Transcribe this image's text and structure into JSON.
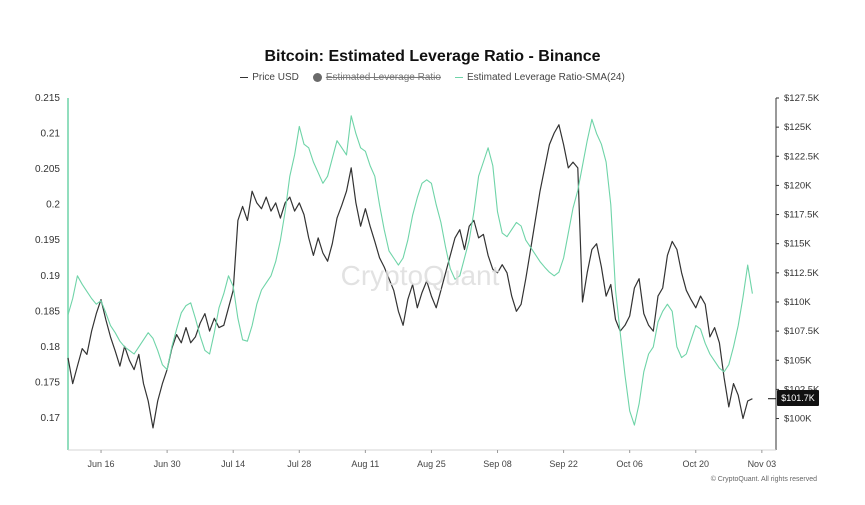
{
  "chart_data": {
    "type": "line",
    "title": "Bitcoin: Estimated Leverage Ratio - Binance",
    "legend": {
      "items": [
        {
          "label": "Price USD",
          "color": "#333333",
          "enabled": true
        },
        {
          "label": "Estimated Leverage Ratio",
          "color": "#6a6a6a",
          "enabled": false
        },
        {
          "label": "Estimated Leverage Ratio-SMA(24)",
          "color": "#6fd4a8",
          "enabled": true
        }
      ]
    },
    "x_ticks": [
      "Jun 16",
      "Jun 30",
      "Jul 14",
      "Jul 28",
      "Aug 11",
      "Aug 25",
      "Sep 08",
      "Sep 22",
      "Oct 06",
      "Oct 20",
      "Nov 03"
    ],
    "x_range": [
      0,
      150
    ],
    "y_left": {
      "ticks": [
        "0.215",
        "0.21",
        "0.205",
        "0.2",
        "0.195",
        "0.19",
        "0.185",
        "0.18",
        "0.175",
        "0.17"
      ],
      "range": [
        0.1655,
        0.215
      ]
    },
    "y_right": {
      "ticks": [
        "$127.5K",
        "$125K",
        "$122.5K",
        "$120K",
        "$117.5K",
        "$115K",
        "$112.5K",
        "$110K",
        "$107.5K",
        "$105K",
        "$102.5K",
        "$100K"
      ],
      "range": [
        97.3,
        127.5
      ]
    },
    "current_price_label": "$101.7K",
    "watermark": "CryptoQuant",
    "footer": "© CryptoQuant. All rights reserved",
    "series": [
      {
        "name": "Price USD",
        "axis": "right",
        "color": "#333333",
        "values": [
          [
            0,
            105.2
          ],
          [
            1,
            103.0
          ],
          [
            2,
            104.5
          ],
          [
            3,
            106.0
          ],
          [
            4,
            105.5
          ],
          [
            5,
            107.5
          ],
          [
            6,
            109.0
          ],
          [
            7,
            110.2
          ],
          [
            8,
            108.5
          ],
          [
            9,
            107.0
          ],
          [
            10,
            105.8
          ],
          [
            11,
            104.5
          ],
          [
            12,
            106.2
          ],
          [
            13,
            105.0
          ],
          [
            14,
            104.2
          ],
          [
            15,
            105.5
          ],
          [
            16,
            103.0
          ],
          [
            17,
            101.5
          ],
          [
            18,
            99.2
          ],
          [
            19,
            101.5
          ],
          [
            20,
            103.0
          ],
          [
            21,
            104.2
          ],
          [
            22,
            106.0
          ],
          [
            23,
            107.2
          ],
          [
            24,
            106.5
          ],
          [
            25,
            107.8
          ],
          [
            26,
            106.5
          ],
          [
            27,
            107.0
          ],
          [
            28,
            108.2
          ],
          [
            29,
            109.0
          ],
          [
            30,
            107.5
          ],
          [
            31,
            108.6
          ],
          [
            32,
            107.8
          ],
          [
            33,
            108.0
          ],
          [
            34,
            109.5
          ],
          [
            35,
            111.0
          ],
          [
            36,
            117.0
          ],
          [
            37,
            118.2
          ],
          [
            38,
            117.0
          ],
          [
            39,
            119.5
          ],
          [
            40,
            118.5
          ],
          [
            41,
            118.0
          ],
          [
            42,
            119.0
          ],
          [
            43,
            117.8
          ],
          [
            44,
            118.5
          ],
          [
            45,
            117.2
          ],
          [
            46,
            118.5
          ],
          [
            47,
            119.0
          ],
          [
            48,
            117.8
          ],
          [
            49,
            118.5
          ],
          [
            50,
            117.5
          ],
          [
            51,
            115.5
          ],
          [
            52,
            114.0
          ],
          [
            53,
            115.5
          ],
          [
            54,
            114.2
          ],
          [
            55,
            113.5
          ],
          [
            56,
            115.0
          ],
          [
            57,
            117.2
          ],
          [
            58,
            118.3
          ],
          [
            59,
            119.5
          ],
          [
            60,
            121.5
          ],
          [
            61,
            118.5
          ],
          [
            62,
            116.5
          ],
          [
            63,
            118.0
          ],
          [
            64,
            116.5
          ],
          [
            65,
            115.2
          ],
          [
            66,
            113.8
          ],
          [
            67,
            113.0
          ],
          [
            68,
            112.0
          ],
          [
            69,
            111.0
          ],
          [
            70,
            109.2
          ],
          [
            71,
            108.0
          ],
          [
            72,
            110.2
          ],
          [
            73,
            111.5
          ],
          [
            74,
            109.5
          ],
          [
            75,
            110.8
          ],
          [
            76,
            111.8
          ],
          [
            77,
            110.5
          ],
          [
            78,
            109.5
          ],
          [
            79,
            111.0
          ],
          [
            80,
            112.5
          ],
          [
            81,
            114.0
          ],
          [
            82,
            115.5
          ],
          [
            83,
            116.2
          ],
          [
            84,
            114.5
          ],
          [
            85,
            116.5
          ],
          [
            86,
            117.0
          ],
          [
            87,
            115.5
          ],
          [
            88,
            115.8
          ],
          [
            89,
            114.0
          ],
          [
            90,
            112.8
          ],
          [
            91,
            112.5
          ],
          [
            92,
            113.2
          ],
          [
            93,
            112.5
          ],
          [
            94,
            110.5
          ],
          [
            95,
            109.2
          ],
          [
            96,
            109.8
          ],
          [
            97,
            112.0
          ],
          [
            98,
            114.5
          ],
          [
            99,
            117.0
          ],
          [
            100,
            119.5
          ],
          [
            101,
            121.5
          ],
          [
            102,
            123.5
          ],
          [
            103,
            124.5
          ],
          [
            104,
            125.2
          ],
          [
            105,
            123.5
          ],
          [
            106,
            121.5
          ],
          [
            107,
            122.0
          ],
          [
            108,
            121.5
          ],
          [
            109,
            110.0
          ],
          [
            110,
            112.5
          ],
          [
            111,
            114.5
          ],
          [
            112,
            115.0
          ],
          [
            113,
            113.0
          ],
          [
            114,
            110.5
          ],
          [
            115,
            111.5
          ],
          [
            116,
            108.5
          ],
          [
            117,
            107.5
          ],
          [
            118,
            108.0
          ],
          [
            119,
            108.8
          ],
          [
            120,
            111.2
          ],
          [
            121,
            112.0
          ],
          [
            122,
            109.0
          ],
          [
            123,
            108.0
          ],
          [
            124,
            107.5
          ],
          [
            125,
            110.5
          ],
          [
            126,
            111.2
          ],
          [
            127,
            114.0
          ],
          [
            128,
            115.2
          ],
          [
            129,
            114.5
          ],
          [
            130,
            112.5
          ],
          [
            131,
            111.0
          ],
          [
            132,
            110.2
          ],
          [
            133,
            109.5
          ],
          [
            134,
            110.5
          ],
          [
            135,
            109.8
          ],
          [
            136,
            107.0
          ],
          [
            137,
            107.8
          ],
          [
            138,
            106.5
          ],
          [
            139,
            103.5
          ],
          [
            140,
            101.0
          ],
          [
            141,
            103.0
          ],
          [
            142,
            102.0
          ],
          [
            143,
            100.0
          ],
          [
            144,
            101.5
          ],
          [
            145,
            101.7
          ]
        ]
      },
      {
        "name": "Estimated Leverage Ratio-SMA(24)",
        "axis": "left",
        "color": "#6fd4a8",
        "values": [
          [
            0,
            0.1845
          ],
          [
            1,
            0.1868
          ],
          [
            2,
            0.19
          ],
          [
            3,
            0.1888
          ],
          [
            4,
            0.1878
          ],
          [
            5,
            0.1868
          ],
          [
            6,
            0.186
          ],
          [
            7,
            0.1865
          ],
          [
            8,
            0.1848
          ],
          [
            9,
            0.183
          ],
          [
            10,
            0.182
          ],
          [
            11,
            0.1808
          ],
          [
            12,
            0.18
          ],
          [
            13,
            0.1795
          ],
          [
            14,
            0.179
          ],
          [
            15,
            0.18
          ],
          [
            16,
            0.181
          ],
          [
            17,
            0.182
          ],
          [
            18,
            0.1812
          ],
          [
            19,
            0.1795
          ],
          [
            20,
            0.1775
          ],
          [
            21,
            0.1768
          ],
          [
            22,
            0.18
          ],
          [
            23,
            0.1825
          ],
          [
            24,
            0.1848
          ],
          [
            25,
            0.1858
          ],
          [
            26,
            0.1862
          ],
          [
            27,
            0.184
          ],
          [
            28,
            0.1815
          ],
          [
            29,
            0.1795
          ],
          [
            30,
            0.179
          ],
          [
            31,
            0.182
          ],
          [
            32,
            0.1855
          ],
          [
            33,
            0.1875
          ],
          [
            34,
            0.19
          ],
          [
            35,
            0.1885
          ],
          [
            36,
            0.184
          ],
          [
            37,
            0.181
          ],
          [
            38,
            0.1808
          ],
          [
            39,
            0.183
          ],
          [
            40,
            0.186
          ],
          [
            41,
            0.188
          ],
          [
            42,
            0.189
          ],
          [
            43,
            0.19
          ],
          [
            44,
            0.192
          ],
          [
            45,
            0.195
          ],
          [
            46,
            0.199
          ],
          [
            47,
            0.204
          ],
          [
            48,
            0.207
          ],
          [
            49,
            0.211
          ],
          [
            50,
            0.2085
          ],
          [
            51,
            0.208
          ],
          [
            52,
            0.206
          ],
          [
            53,
            0.2045
          ],
          [
            54,
            0.203
          ],
          [
            55,
            0.204
          ],
          [
            56,
            0.2065
          ],
          [
            57,
            0.209
          ],
          [
            58,
            0.208
          ],
          [
            59,
            0.207
          ],
          [
            60,
            0.2125
          ],
          [
            61,
            0.21
          ],
          [
            62,
            0.208
          ],
          [
            63,
            0.2075
          ],
          [
            64,
            0.2055
          ],
          [
            65,
            0.204
          ],
          [
            66,
            0.2
          ],
          [
            67,
            0.1965
          ],
          [
            68,
            0.1935
          ],
          [
            69,
            0.1925
          ],
          [
            70,
            0.1915
          ],
          [
            71,
            0.1925
          ],
          [
            72,
            0.195
          ],
          [
            73,
            0.1985
          ],
          [
            74,
            0.201
          ],
          [
            75,
            0.203
          ],
          [
            76,
            0.2035
          ],
          [
            77,
            0.203
          ],
          [
            78,
            0.2
          ],
          [
            79,
            0.1975
          ],
          [
            80,
            0.194
          ],
          [
            81,
            0.191
          ],
          [
            82,
            0.1895
          ],
          [
            83,
            0.19
          ],
          [
            84,
            0.1925
          ],
          [
            85,
            0.195
          ],
          [
            86,
            0.199
          ],
          [
            87,
            0.204
          ],
          [
            88,
            0.206
          ],
          [
            89,
            0.208
          ],
          [
            90,
            0.2055
          ],
          [
            91,
            0.199
          ],
          [
            92,
            0.196
          ],
          [
            93,
            0.1955
          ],
          [
            94,
            0.1965
          ],
          [
            95,
            0.1975
          ],
          [
            96,
            0.197
          ],
          [
            97,
            0.195
          ],
          [
            98,
            0.194
          ],
          [
            99,
            0.193
          ],
          [
            100,
            0.192
          ],
          [
            101,
            0.1912
          ],
          [
            102,
            0.1905
          ],
          [
            103,
            0.19
          ],
          [
            104,
            0.1905
          ],
          [
            105,
            0.1925
          ],
          [
            106,
            0.196
          ],
          [
            107,
            0.1995
          ],
          [
            108,
            0.202
          ],
          [
            109,
            0.2055
          ],
          [
            110,
            0.209
          ],
          [
            111,
            0.212
          ],
          [
            112,
            0.21
          ],
          [
            113,
            0.2085
          ],
          [
            114,
            0.206
          ],
          [
            115,
            0.2
          ],
          [
            116,
            0.188
          ],
          [
            117,
            0.182
          ],
          [
            118,
            0.176
          ],
          [
            119,
            0.171
          ],
          [
            120,
            0.169
          ],
          [
            121,
            0.172
          ],
          [
            122,
            0.1765
          ],
          [
            123,
            0.179
          ],
          [
            124,
            0.18
          ],
          [
            125,
            0.1835
          ],
          [
            126,
            0.185
          ],
          [
            127,
            0.186
          ],
          [
            128,
            0.185
          ],
          [
            129,
            0.18
          ],
          [
            130,
            0.1785
          ],
          [
            131,
            0.179
          ],
          [
            132,
            0.181
          ],
          [
            133,
            0.183
          ],
          [
            134,
            0.1825
          ],
          [
            135,
            0.1805
          ],
          [
            136,
            0.179
          ],
          [
            137,
            0.178
          ],
          [
            138,
            0.177
          ],
          [
            139,
            0.1765
          ],
          [
            140,
            0.1775
          ],
          [
            141,
            0.18
          ],
          [
            142,
            0.183
          ],
          [
            143,
            0.187
          ],
          [
            144,
            0.1915
          ],
          [
            145,
            0.1875
          ]
        ]
      }
    ]
  }
}
